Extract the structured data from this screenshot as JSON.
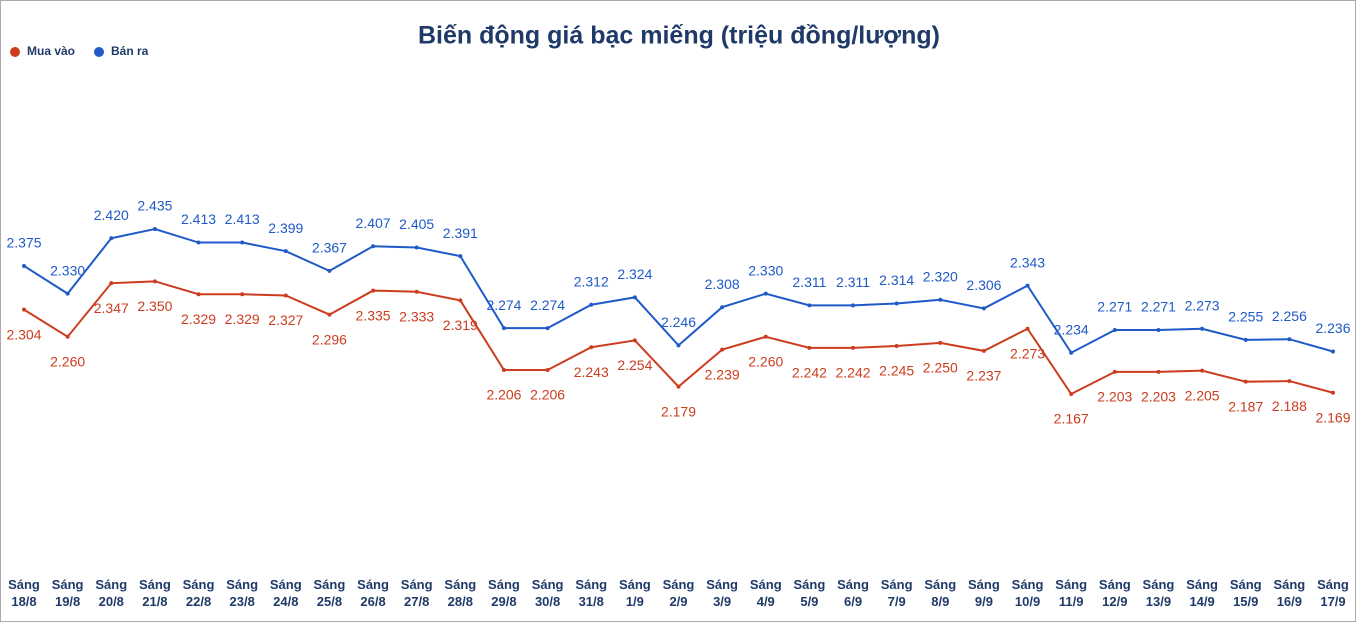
{
  "chart_data": {
    "type": "line",
    "title": "Biến động giá bạc miếng (triệu đồng/lượng)",
    "categories": [
      "Sáng 18/8",
      "Sáng 19/8",
      "Sáng 20/8",
      "Sáng 21/8",
      "Sáng 22/8",
      "Sáng 23/8",
      "Sáng 24/8",
      "Sáng 25/8",
      "Sáng 26/8",
      "Sáng 27/8",
      "Sáng 28/8",
      "Sáng 29/8",
      "Sáng 30/8",
      "Sáng 31/8",
      "Sáng 1/9",
      "Sáng 2/9",
      "Sáng 3/9",
      "Sáng 4/9",
      "Sáng 5/9",
      "Sáng 6/9",
      "Sáng 7/9",
      "Sáng 8/9",
      "Sáng 9/9",
      "Sáng 10/9",
      "Sáng 11/9",
      "Sáng 12/9",
      "Sáng 13/9",
      "Sáng 14/9",
      "Sáng 15/9",
      "Sáng 16/9",
      "Sáng 17/9"
    ],
    "series": [
      {
        "name": "Mua vào",
        "color": "#cc3d1f",
        "values": [
          2.304,
          2.26,
          2.347,
          2.35,
          2.329,
          2.329,
          2.327,
          2.296,
          2.335,
          2.333,
          2.319,
          2.206,
          2.206,
          2.243,
          2.254,
          2.179,
          2.239,
          2.26,
          2.242,
          2.242,
          2.245,
          2.25,
          2.237,
          2.273,
          2.167,
          2.203,
          2.203,
          2.205,
          2.187,
          2.188,
          2.169
        ],
        "value_labels": [
          "2.304",
          "2.260",
          "2.347",
          "2.350",
          "2.329",
          "2.329",
          "2.327",
          "2.296",
          "2.335",
          "2.333",
          "2.319",
          "2.206",
          "2.206",
          "2.243",
          "2.254",
          "2.179",
          "2.239",
          "2.260",
          "2.242",
          "2.242",
          "2.245",
          "2.250",
          "2.237",
          "2.273",
          "2.167",
          "2.203",
          "2.203",
          "2.205",
          "2.187",
          "2.188",
          "2.169"
        ]
      },
      {
        "name": "Bán ra",
        "color": "#1f5ac8",
        "values": [
          2.375,
          2.33,
          2.42,
          2.435,
          2.413,
          2.413,
          2.399,
          2.367,
          2.407,
          2.405,
          2.391,
          2.274,
          2.274,
          2.312,
          2.324,
          2.246,
          2.308,
          2.33,
          2.311,
          2.311,
          2.314,
          2.32,
          2.306,
          2.343,
          2.234,
          2.271,
          2.271,
          2.273,
          2.255,
          2.256,
          2.236
        ],
        "value_labels": [
          "2.375",
          "2.330",
          "2.420",
          "2.435",
          "2.413",
          "2.413",
          "2.399",
          "2.367",
          "2.407",
          "2.405",
          "2.391",
          "2.274",
          "2.274",
          "2.312",
          "2.324",
          "2.246",
          "2.308",
          "2.330",
          "2.311",
          "2.311",
          "2.314",
          "2.320",
          "2.306",
          "2.343",
          "2.234",
          "2.271",
          "2.271",
          "2.273",
          "2.255",
          "2.256",
          "2.236"
        ]
      }
    ]
  }
}
